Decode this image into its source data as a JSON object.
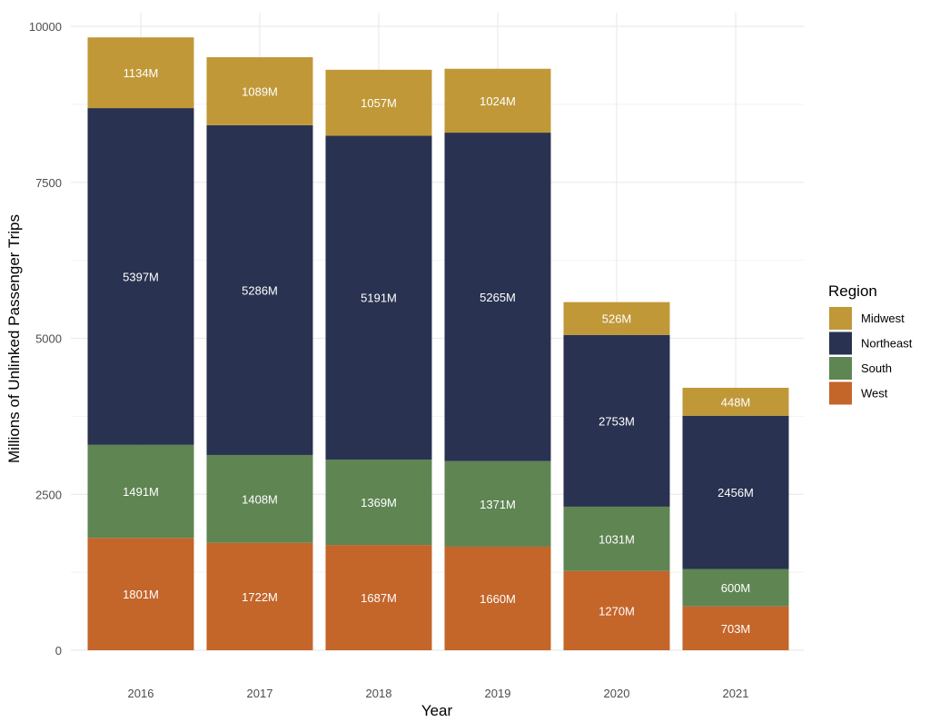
{
  "chart_data": {
    "type": "bar",
    "stacked": true,
    "title": "",
    "xlabel": "Year",
    "ylabel": "Millions of Unlinked Passenger Trips",
    "ylim": [
      0,
      10000
    ],
    "yticks": [
      0,
      2500,
      5000,
      7500,
      10000
    ],
    "grid": true,
    "legend_title": "Region",
    "legend_position": "right",
    "categories": [
      "2016",
      "2017",
      "2018",
      "2019",
      "2020",
      "2021"
    ],
    "label_suffix": "M",
    "series": [
      {
        "name": "West",
        "color": "#C4652A",
        "values": [
          1801,
          1722,
          1687,
          1660,
          1270,
          703
        ]
      },
      {
        "name": "South",
        "color": "#5F8553",
        "values": [
          1491,
          1408,
          1369,
          1371,
          1031,
          600
        ]
      },
      {
        "name": "Northeast",
        "color": "#293250",
        "values": [
          5397,
          5286,
          5191,
          5265,
          2753,
          2456
        ]
      },
      {
        "name": "Midwest",
        "color": "#C09838",
        "values": [
          1134,
          1089,
          1057,
          1024,
          526,
          448
        ]
      }
    ],
    "legend_order": [
      "Midwest",
      "Northeast",
      "South",
      "West"
    ]
  }
}
